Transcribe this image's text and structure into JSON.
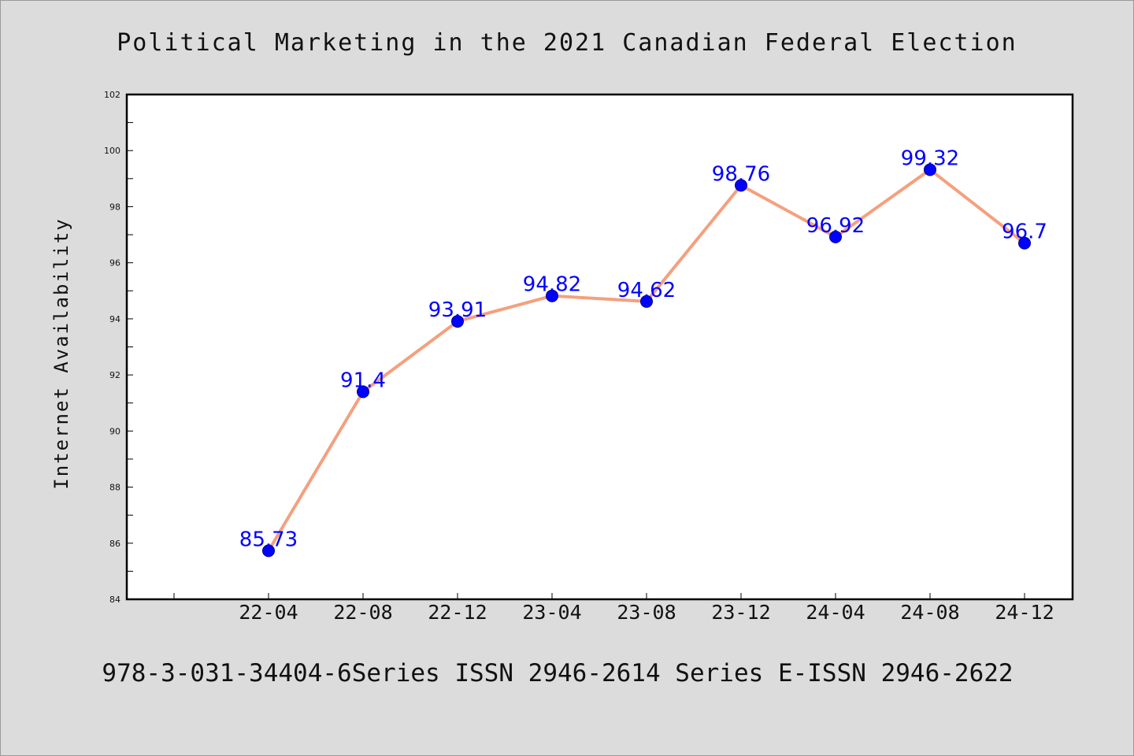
{
  "chart_data": {
    "type": "line",
    "title": "Political Marketing in the 2021 Canadian Federal Election",
    "xlabel": "",
    "ylabel": "Internet Availability",
    "categories": [
      "22-04",
      "22-08",
      "22-12",
      "23-04",
      "23-08",
      "23-12",
      "24-04",
      "24-08",
      "24-12"
    ],
    "series": [
      {
        "values": [
          85.73,
          91.4,
          93.91,
          94.82,
          94.62,
          98.76,
          96.92,
          99.32,
          96.7
        ],
        "data_labels": [
          "85.73",
          "91.4",
          "93.91",
          "94.82",
          "94.62",
          "98.76",
          "96.92",
          "99.32",
          "96.7"
        ]
      }
    ],
    "ylim": [
      84,
      102
    ],
    "yticks": [
      84,
      86,
      88,
      90,
      92,
      94,
      96,
      98,
      100,
      102
    ],
    "grid": false,
    "legend": "none",
    "colors": {
      "line": "#f4a07e",
      "marker": "#0000ff",
      "label": "#0000ff",
      "background": "#dcdcdc",
      "plot_background": "#ffffff"
    }
  },
  "footer": "978-3-031-34404-6Series ISSN 2946-2614 Series E-ISSN 2946-2622"
}
